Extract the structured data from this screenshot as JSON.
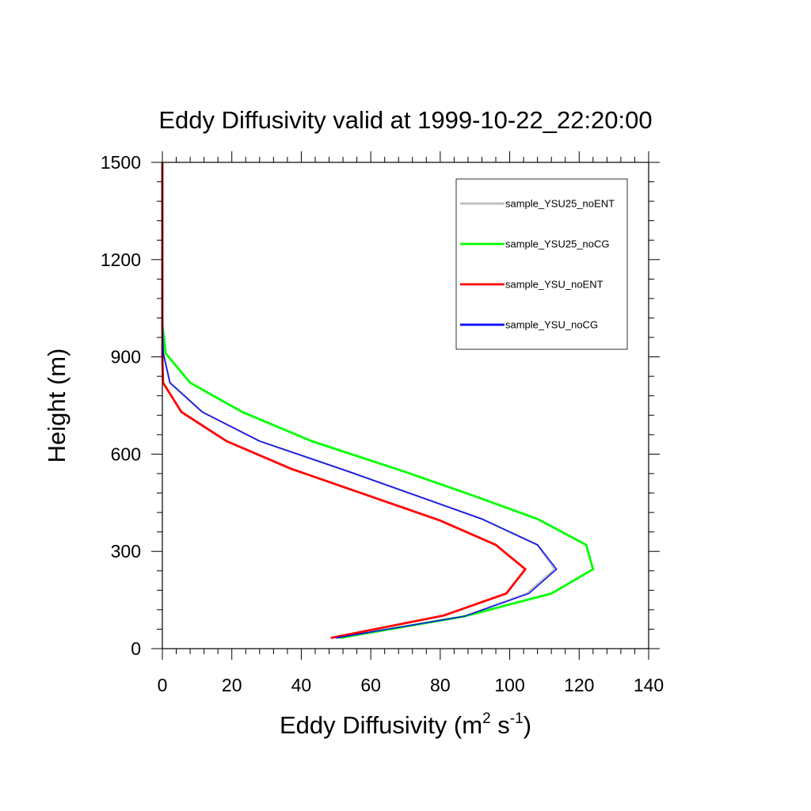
{
  "chart_data": {
    "type": "line",
    "title": "Eddy Diffusivity valid at 1999-10-22_22:20:00",
    "xlabel": {
      "main": "Eddy Diffusivity (m",
      "sup1": "2",
      "mid": " s",
      "sup2": "-1",
      "end": ")"
    },
    "ylabel": "Height (m)",
    "xlim": [
      0,
      140
    ],
    "ylim": [
      0,
      1500
    ],
    "xticks": [
      "0",
      "20",
      "40",
      "60",
      "80",
      "100",
      "120",
      "140"
    ],
    "yticks": [
      "0",
      "300",
      "600",
      "900",
      "1200",
      "1500"
    ],
    "legend_position": "top-right",
    "series": [
      {
        "name": "sample_YSU25_noENT",
        "color": "#bdbdbd",
        "points": [
          [
            0,
            1500
          ],
          [
            0,
            1000
          ],
          [
            0.3,
            910
          ],
          [
            2.2,
            820
          ],
          [
            11.5,
            730
          ],
          [
            28,
            640
          ],
          [
            54,
            545
          ],
          [
            92,
            400
          ],
          [
            108,
            320
          ],
          [
            113,
            245
          ],
          [
            105,
            170
          ],
          [
            87,
            100
          ],
          [
            50,
            33
          ]
        ]
      },
      {
        "name": "sample_YSU25_noCG",
        "color": "#00ff00",
        "points": [
          [
            0,
            1500
          ],
          [
            0,
            1000
          ],
          [
            1,
            910
          ],
          [
            8,
            820
          ],
          [
            23,
            730
          ],
          [
            43,
            640
          ],
          [
            70,
            545
          ],
          [
            90,
            470
          ],
          [
            108,
            400
          ],
          [
            122,
            320
          ],
          [
            124,
            245
          ],
          [
            112,
            170
          ],
          [
            87,
            100
          ],
          [
            51,
            33
          ]
        ]
      },
      {
        "name": "sample_YSU_noENT",
        "color": "#ff0000",
        "points": [
          [
            0,
            1500
          ],
          [
            0,
            900
          ],
          [
            0.2,
            820
          ],
          [
            5.5,
            730
          ],
          [
            18.5,
            640
          ],
          [
            37,
            555
          ],
          [
            80,
            395
          ],
          [
            96,
            320
          ],
          [
            104.5,
            245
          ],
          [
            99,
            170
          ],
          [
            81,
            102
          ],
          [
            48.5,
            33
          ]
        ]
      },
      {
        "name": "sample_YSU_noCG",
        "color": "#0000ff",
        "points": [
          [
            0,
            1500
          ],
          [
            0,
            1000
          ],
          [
            0.3,
            910
          ],
          [
            2.2,
            820
          ],
          [
            11.5,
            730
          ],
          [
            28,
            640
          ],
          [
            54,
            545
          ],
          [
            92,
            400
          ],
          [
            108,
            320
          ],
          [
            113.5,
            245
          ],
          [
            105.5,
            170
          ],
          [
            87,
            100
          ],
          [
            50,
            33
          ]
        ]
      }
    ]
  }
}
